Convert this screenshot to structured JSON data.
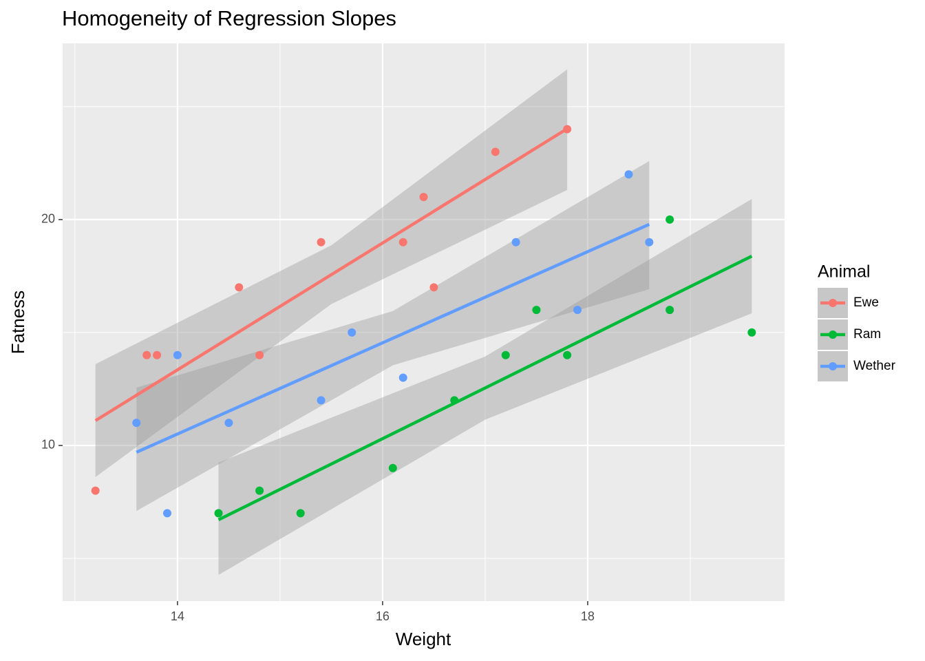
{
  "chart_data": {
    "type": "scatter",
    "title": "Homogeneity of Regression Slopes",
    "x_label": "Weight",
    "y_label": "Fatness",
    "legend_title": "Animal",
    "legend_position": "right",
    "grid": true,
    "background": "#EBEBEB",
    "band_color": "#999999",
    "xlim": [
      12.88,
      19.92
    ],
    "ylim": [
      3.11,
      27.8
    ],
    "xticks": [
      14,
      16,
      18
    ],
    "yticks": [
      10,
      20
    ],
    "x_minor_grid": [
      13,
      15,
      17,
      19
    ],
    "y_minor_grid": [
      5,
      15,
      25
    ],
    "series": [
      {
        "name": "Ewe",
        "color": "#F8766D",
        "x": [
          13.2,
          13.7,
          13.8,
          14.6,
          14.8,
          15.4,
          16.2,
          16.4,
          16.5,
          17.1,
          17.8
        ],
        "y": [
          8,
          14,
          14,
          17,
          14,
          19,
          19,
          21,
          17,
          23,
          24
        ],
        "fit": {
          "x": [
            13.2,
            17.8
          ],
          "y": [
            11.1,
            24.02
          ]
        },
        "band": {
          "x": [
            13.2,
            15.5,
            17.8
          ],
          "lower": [
            8.6,
            16.26,
            21.31
          ],
          "upper": [
            13.6,
            18.86,
            26.65
          ]
        }
      },
      {
        "name": "Ram",
        "color": "#00BA38",
        "x": [
          14.4,
          14.8,
          15.2,
          16.1,
          16.7,
          17.2,
          17.5,
          17.8,
          18.8,
          18.8,
          19.6
        ],
        "y": [
          7,
          8,
          7,
          9,
          12,
          14,
          16,
          14,
          20,
          16,
          15
        ],
        "fit": {
          "x": [
            14.4,
            19.6
          ],
          "y": [
            6.71,
            18.38
          ]
        },
        "band": {
          "x": [
            14.4,
            17,
            19.6
          ],
          "lower": [
            4.27,
            11.14,
            15.85
          ],
          "upper": [
            9.24,
            13.94,
            20.91
          ]
        }
      },
      {
        "name": "Wether",
        "color": "#619CFF",
        "x": [
          13.6,
          13.9,
          14.0,
          14.5,
          15.4,
          15.7,
          16.2,
          17.3,
          17.9,
          18.4,
          18.6
        ],
        "y": [
          11,
          7,
          14,
          11,
          12,
          15,
          13,
          19,
          16,
          22,
          19
        ],
        "fit": {
          "x": [
            13.6,
            18.6
          ],
          "y": [
            9.7,
            19.79
          ]
        },
        "band": {
          "x": [
            13.6,
            16.1,
            18.6
          ],
          "lower": [
            7.1,
            13.55,
            16.92
          ],
          "upper": [
            12.56,
            15.95,
            22.59
          ]
        }
      }
    ]
  }
}
